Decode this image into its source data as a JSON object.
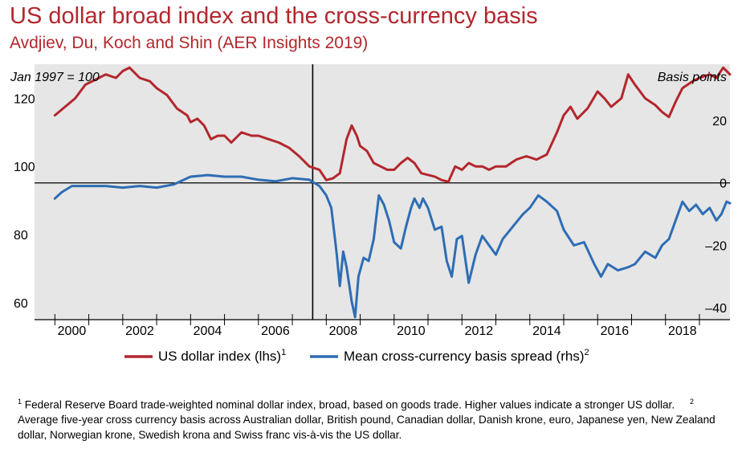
{
  "title": "US dollar broad index and the cross-currency basis",
  "subtitle": "Avdjiev, Du, Koch and Shin (AER Insights 2019)",
  "chart_data": {
    "type": "line",
    "left_axis_label": "Jan 1997 = 100",
    "right_axis_label": "Basis points",
    "x_ticks": [
      "2000",
      "2002",
      "2004",
      "2006",
      "2008",
      "2010",
      "2012",
      "2014",
      "2016",
      "2018"
    ],
    "y_left_ticks": [
      "120",
      "100",
      "80",
      "60"
    ],
    "y_right_ticks": [
      "20",
      "0",
      "–20",
      "–40"
    ],
    "xlim": [
      1999.4,
      2019.9
    ],
    "ylim_left": [
      55,
      130
    ],
    "ylim_right": [
      -43.8,
      38
    ],
    "vertical_line_x": 2007.6,
    "horizontal_line_right": 0,
    "grid": false,
    "legend_position": "bottom",
    "series": [
      {
        "name": "US dollar index (lhs)",
        "footnote_ref": "1",
        "axis": "left",
        "color": "#b3272d",
        "points": [
          [
            2000.0,
            115
          ],
          [
            2000.3,
            117.5
          ],
          [
            2000.6,
            120
          ],
          [
            2000.9,
            124
          ],
          [
            2001.2,
            125.5
          ],
          [
            2001.5,
            127
          ],
          [
            2001.8,
            126
          ],
          [
            2002.0,
            128
          ],
          [
            2002.2,
            129
          ],
          [
            2002.5,
            126
          ],
          [
            2002.8,
            125
          ],
          [
            2003.0,
            123
          ],
          [
            2003.3,
            121
          ],
          [
            2003.6,
            117
          ],
          [
            2003.9,
            115
          ],
          [
            2004.0,
            113
          ],
          [
            2004.2,
            114
          ],
          [
            2004.4,
            112
          ],
          [
            2004.6,
            108
          ],
          [
            2004.8,
            109
          ],
          [
            2005.0,
            109
          ],
          [
            2005.2,
            107
          ],
          [
            2005.5,
            110
          ],
          [
            2005.8,
            109
          ],
          [
            2006.0,
            109
          ],
          [
            2006.3,
            108
          ],
          [
            2006.6,
            107
          ],
          [
            2006.9,
            105.5
          ],
          [
            2007.2,
            103
          ],
          [
            2007.5,
            100
          ],
          [
            2007.8,
            99
          ],
          [
            2008.0,
            96
          ],
          [
            2008.2,
            96.5
          ],
          [
            2008.4,
            98
          ],
          [
            2008.6,
            108
          ],
          [
            2008.75,
            112
          ],
          [
            2008.9,
            109
          ],
          [
            2009.0,
            106
          ],
          [
            2009.2,
            104.5
          ],
          [
            2009.4,
            101
          ],
          [
            2009.6,
            100
          ],
          [
            2009.8,
            99
          ],
          [
            2010.0,
            99
          ],
          [
            2010.2,
            101
          ],
          [
            2010.4,
            102.5
          ],
          [
            2010.6,
            101
          ],
          [
            2010.8,
            98
          ],
          [
            2011.0,
            97.5
          ],
          [
            2011.2,
            97
          ],
          [
            2011.4,
            96
          ],
          [
            2011.6,
            95.5
          ],
          [
            2011.8,
            100
          ],
          [
            2012.0,
            99
          ],
          [
            2012.2,
            101
          ],
          [
            2012.4,
            100
          ],
          [
            2012.6,
            100
          ],
          [
            2012.8,
            99
          ],
          [
            2013.0,
            100
          ],
          [
            2013.3,
            100
          ],
          [
            2013.6,
            102
          ],
          [
            2013.9,
            103
          ],
          [
            2014.2,
            102
          ],
          [
            2014.5,
            103.5
          ],
          [
            2014.8,
            110
          ],
          [
            2015.0,
            115
          ],
          [
            2015.2,
            117.5
          ],
          [
            2015.4,
            114
          ],
          [
            2015.7,
            117
          ],
          [
            2016.0,
            122
          ],
          [
            2016.2,
            120
          ],
          [
            2016.4,
            117.5
          ],
          [
            2016.7,
            120
          ],
          [
            2016.9,
            127
          ],
          [
            2017.1,
            124
          ],
          [
            2017.4,
            120
          ],
          [
            2017.7,
            118
          ],
          [
            2017.9,
            116
          ],
          [
            2018.1,
            114.5
          ],
          [
            2018.3,
            119
          ],
          [
            2018.5,
            123
          ],
          [
            2018.8,
            125
          ],
          [
            2019.0,
            126
          ],
          [
            2019.3,
            127
          ],
          [
            2019.5,
            126
          ],
          [
            2019.7,
            129
          ],
          [
            2019.85,
            127.5
          ],
          [
            2019.9,
            127
          ]
        ]
      },
      {
        "name": "Mean cross-currency basis spread (rhs)",
        "footnote_ref": "2",
        "axis": "right",
        "color": "#2e6db4",
        "points": [
          [
            2000.0,
            -5
          ],
          [
            2000.2,
            -3
          ],
          [
            2000.5,
            -1
          ],
          [
            2001.0,
            -1
          ],
          [
            2001.5,
            -1
          ],
          [
            2002.0,
            -1.5
          ],
          [
            2002.5,
            -1
          ],
          [
            2003.0,
            -1.5
          ],
          [
            2003.5,
            -0.5
          ],
          [
            2004.0,
            2
          ],
          [
            2004.5,
            2.5
          ],
          [
            2005.0,
            2
          ],
          [
            2005.5,
            2
          ],
          [
            2006.0,
            1
          ],
          [
            2006.5,
            0.5
          ],
          [
            2007.0,
            1.5
          ],
          [
            2007.5,
            1
          ],
          [
            2007.8,
            -1
          ],
          [
            2008.0,
            -4
          ],
          [
            2008.15,
            -8
          ],
          [
            2008.3,
            -22
          ],
          [
            2008.4,
            -33
          ],
          [
            2008.5,
            -22
          ],
          [
            2008.6,
            -27
          ],
          [
            2008.75,
            -38
          ],
          [
            2008.85,
            -43
          ],
          [
            2008.95,
            -30
          ],
          [
            2009.1,
            -24
          ],
          [
            2009.25,
            -25
          ],
          [
            2009.4,
            -18
          ],
          [
            2009.55,
            -4
          ],
          [
            2009.7,
            -7
          ],
          [
            2009.85,
            -12
          ],
          [
            2010.0,
            -19
          ],
          [
            2010.2,
            -21
          ],
          [
            2010.35,
            -14
          ],
          [
            2010.5,
            -8
          ],
          [
            2010.6,
            -5
          ],
          [
            2010.75,
            -8
          ],
          [
            2010.85,
            -5
          ],
          [
            2011.0,
            -8
          ],
          [
            2011.2,
            -15
          ],
          [
            2011.4,
            -14
          ],
          [
            2011.55,
            -25
          ],
          [
            2011.7,
            -30
          ],
          [
            2011.85,
            -18
          ],
          [
            2012.0,
            -17
          ],
          [
            2012.2,
            -32
          ],
          [
            2012.4,
            -23
          ],
          [
            2012.6,
            -17
          ],
          [
            2012.8,
            -20
          ],
          [
            2013.0,
            -23
          ],
          [
            2013.2,
            -18
          ],
          [
            2013.5,
            -14
          ],
          [
            2013.8,
            -10
          ],
          [
            2014.0,
            -8
          ],
          [
            2014.25,
            -4
          ],
          [
            2014.5,
            -6
          ],
          [
            2014.8,
            -9
          ],
          [
            2015.0,
            -15
          ],
          [
            2015.3,
            -20
          ],
          [
            2015.6,
            -19
          ],
          [
            2015.9,
            -26
          ],
          [
            2016.1,
            -30
          ],
          [
            2016.3,
            -26
          ],
          [
            2016.6,
            -28
          ],
          [
            2016.9,
            -27
          ],
          [
            2017.1,
            -26
          ],
          [
            2017.4,
            -22
          ],
          [
            2017.7,
            -24
          ],
          [
            2017.9,
            -20
          ],
          [
            2018.1,
            -18
          ],
          [
            2018.3,
            -12
          ],
          [
            2018.5,
            -6
          ],
          [
            2018.7,
            -9
          ],
          [
            2018.9,
            -7
          ],
          [
            2019.1,
            -10
          ],
          [
            2019.3,
            -8
          ],
          [
            2019.5,
            -12
          ],
          [
            2019.65,
            -10
          ],
          [
            2019.8,
            -6
          ],
          [
            2019.9,
            -6.5
          ]
        ]
      }
    ]
  },
  "legend": {
    "items": [
      {
        "label": "US dollar index (lhs)",
        "sup": "1",
        "color": "#b3272d"
      },
      {
        "label": "Mean cross-currency basis spread (rhs)",
        "sup": "2",
        "color": "#2e6db4"
      }
    ]
  },
  "footnotes": {
    "f1_num": "1",
    "f1_text": "Federal Reserve Board trade-weighted nominal dollar index, broad, based on goods trade. Higher values indicate a stronger US dollar.",
    "f2_num": "2",
    "f2_text": "Average five-year cross currency basis across Australian dollar, British pound, Canadian dollar, Danish krone, euro, Japanese yen, New Zealand dollar, Norwegian krone, Swedish krona and Swiss franc vis-à-vis the US dollar."
  }
}
